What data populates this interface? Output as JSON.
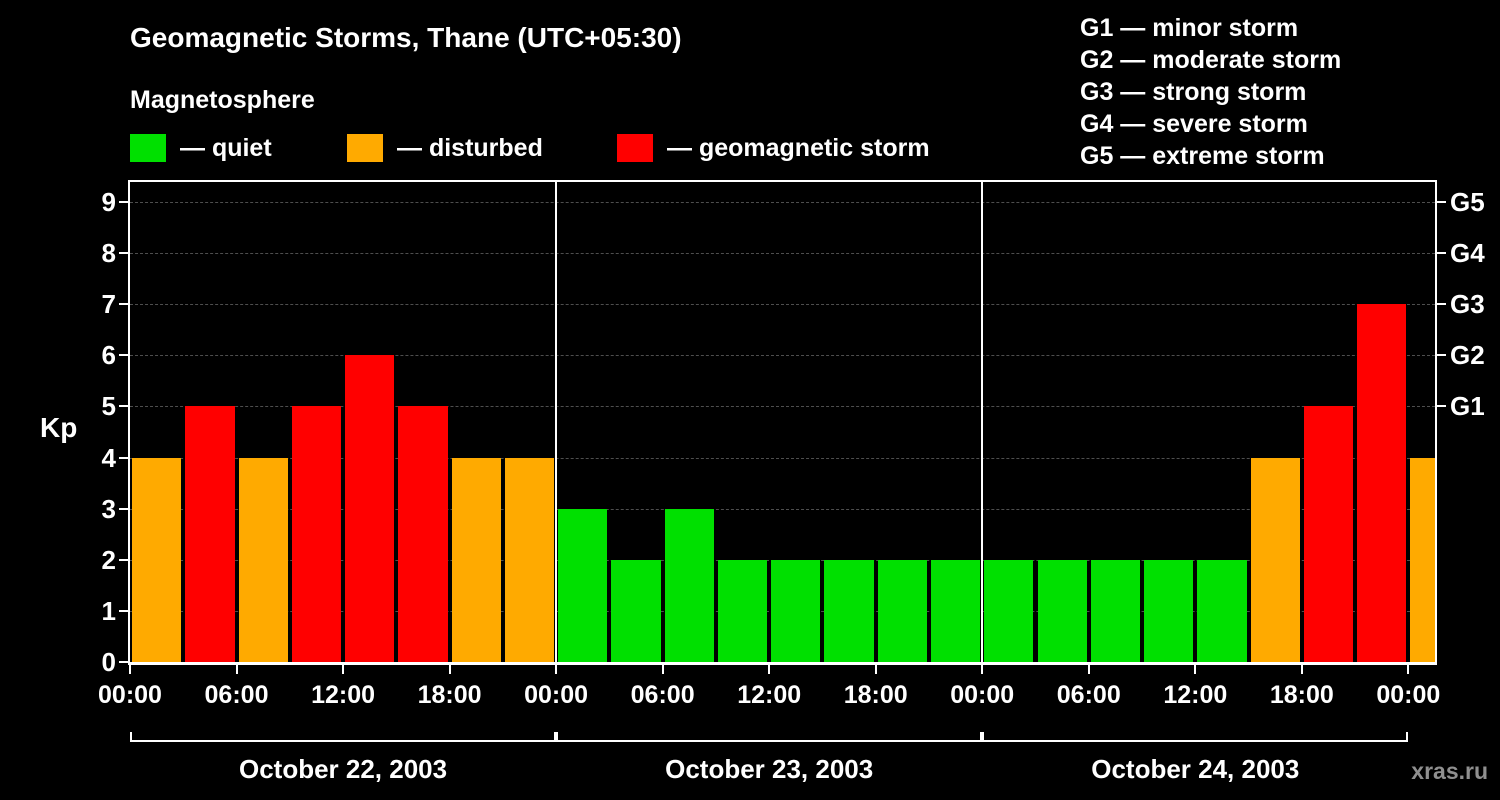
{
  "title": "Geomagnetic Storms, Thane (UTC+05:30)",
  "subtitle": "Magnetosphere",
  "kp_axis_label": "Kp",
  "watermark": "xras.ru",
  "legend": {
    "items": [
      {
        "label": "— quiet",
        "color": "#00e000"
      },
      {
        "label": "— disturbed",
        "color": "#ffaa00"
      },
      {
        "label": "— geomagnetic storm",
        "color": "#ff0000"
      }
    ]
  },
  "storm_scale": {
    "lines": [
      "G1 — minor storm",
      "G2 — moderate storm",
      "G3 — strong storm",
      "G4 — severe storm",
      "G5 — extreme storm"
    ]
  },
  "chart_data": {
    "type": "bar",
    "ylabel": "Kp",
    "ylim": [
      0,
      9
    ],
    "yticks": [
      0,
      1,
      2,
      3,
      4,
      5,
      6,
      7,
      8,
      9
    ],
    "total_hours": 73.5,
    "hours_per_bar": 3,
    "x_tick_interval_hours": 6,
    "x_tick_labels": [
      "00:00",
      "06:00",
      "12:00",
      "18:00",
      "00:00",
      "06:00",
      "12:00",
      "18:00",
      "00:00",
      "06:00",
      "12:00",
      "18:00",
      "00:00"
    ],
    "right_axis_labels": [
      {
        "value": 5,
        "label": "G1"
      },
      {
        "value": 6,
        "label": "G2"
      },
      {
        "value": 7,
        "label": "G3"
      },
      {
        "value": 8,
        "label": "G4"
      },
      {
        "value": 9,
        "label": "G5"
      }
    ],
    "days": [
      {
        "date": "October 22, 2003",
        "values": [
          4,
          5,
          4,
          5,
          6,
          5,
          4,
          4
        ]
      },
      {
        "date": "October 23, 2003",
        "values": [
          3,
          2,
          3,
          2,
          2,
          2,
          2,
          2
        ]
      },
      {
        "date": "October 24, 2003",
        "values": [
          2,
          2,
          2,
          2,
          2,
          4,
          5,
          7
        ]
      }
    ],
    "partial_next_bar": {
      "value": 4
    },
    "color_rules": {
      "quiet_max": 3,
      "disturbed_max": 4,
      "colors": {
        "quiet": "#00e000",
        "disturbed": "#ffaa00",
        "storm": "#ff0000"
      }
    },
    "grid": "horizontal-dashed",
    "legend_position": "top"
  }
}
